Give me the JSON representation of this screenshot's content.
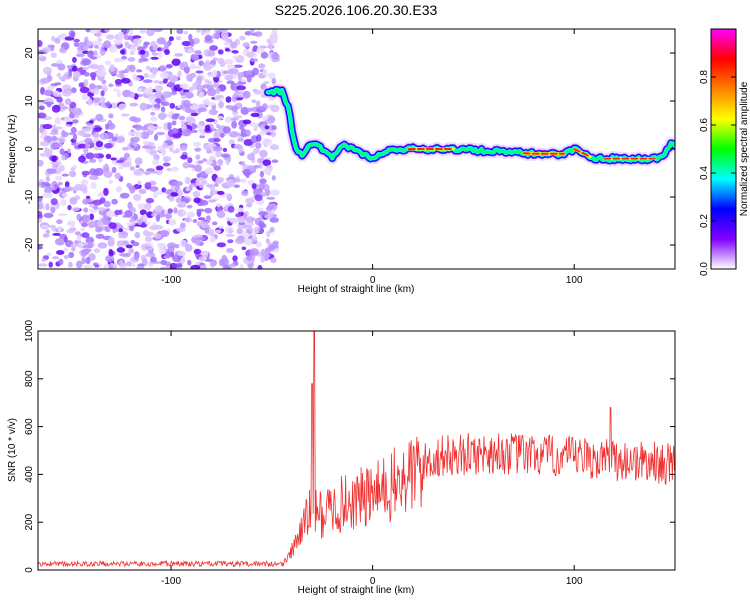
{
  "title": "S225.2026.106.20.30.E33",
  "chart_data": [
    {
      "type": "heatmap",
      "xlabel": "Height of straight line (km)",
      "ylabel": "Frequency (Hz)",
      "xlim": [
        -166,
        150
      ],
      "ylim": [
        -25,
        25
      ],
      "x_ticks": [
        -100,
        0,
        100
      ],
      "x_tick_labels": [
        "-100",
        "0",
        "100"
      ],
      "y_ticks": [
        -20,
        -10,
        0,
        10,
        20
      ],
      "y_tick_labels": [
        "-20",
        "-10",
        "0",
        "10",
        "20"
      ],
      "noise_region_x": [
        -166,
        -52
      ],
      "ridge": {
        "x": [
          -52,
          -45,
          -42,
          -40,
          -38,
          -35,
          -30,
          -25,
          -20,
          -15,
          -10,
          -5,
          0,
          5,
          10,
          20,
          40,
          60,
          80,
          95,
          100,
          105,
          110,
          120,
          140,
          145,
          148,
          150
        ],
        "y": [
          12,
          12,
          9,
          4,
          0,
          -1,
          1,
          0,
          -2,
          1,
          0,
          -1,
          -2,
          -1,
          0,
          0,
          0,
          -0.5,
          -1,
          -1,
          0,
          -1,
          -2,
          -2,
          -2,
          -1,
          1,
          1
        ]
      },
      "high_amplitude_segments": [
        [
          18,
          40
        ],
        [
          75,
          95
        ],
        [
          100,
          108
        ],
        [
          115,
          140
        ]
      ],
      "colorbar": {
        "label": "Normalized spectral amplitude",
        "range": [
          0,
          1
        ],
        "ticks": [
          0,
          0.2,
          0.4,
          0.6,
          0.8
        ],
        "tick_labels": [
          "0.0",
          "0.2",
          "0.4",
          "0.6",
          "0.8"
        ],
        "stops": [
          "#ffffff",
          "#8000ff",
          "#0000ff",
          "#00ffff",
          "#00ff00",
          "#ffff00",
          "#ff8000",
          "#ff0000",
          "#ff00ff"
        ]
      }
    },
    {
      "type": "line",
      "xlabel": "Height of straight line (km)",
      "ylabel": "SNR (10 * v/v)",
      "xlim": [
        -166,
        150
      ],
      "ylim": [
        0,
        1000
      ],
      "x_ticks": [
        -100,
        0,
        100
      ],
      "x_tick_labels": [
        "-100",
        "0",
        "100"
      ],
      "y_ticks": [
        0,
        200,
        400,
        600,
        800,
        1000
      ],
      "y_tick_labels": [
        "0",
        "200",
        "400",
        "600",
        "800",
        "1000"
      ],
      "color": "#f03030",
      "envelope_x": [
        -166,
        -45,
        -40,
        -35,
        -30,
        -25,
        -20,
        -10,
        0,
        10,
        20,
        25,
        30,
        40,
        60,
        80,
        100,
        120,
        140,
        150
      ],
      "envelope_y": [
        20,
        20,
        80,
        180,
        250,
        230,
        260,
        290,
        310,
        350,
        400,
        440,
        470,
        480,
        490,
        480,
        470,
        460,
        450,
        440
      ],
      "spikes": [
        {
          "x": -29,
          "y": 1000
        },
        {
          "x": -30,
          "y": 780
        },
        {
          "x": 118,
          "y": 680
        },
        {
          "x": 150,
          "y": 640
        }
      ]
    }
  ]
}
